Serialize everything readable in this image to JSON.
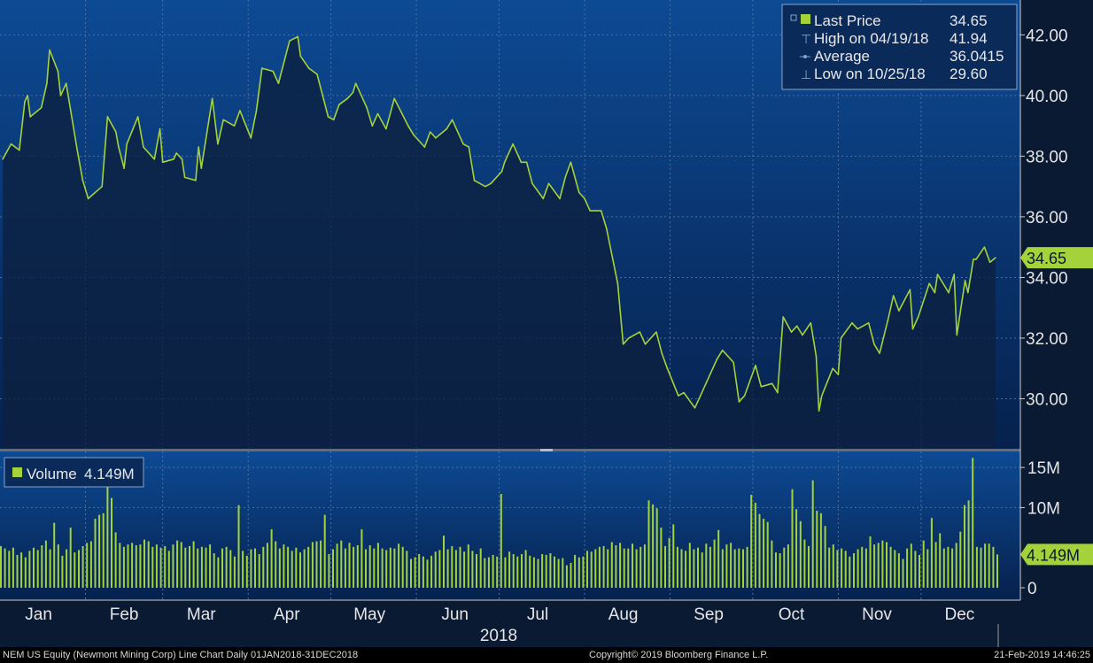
{
  "chart_data": {
    "type": "line",
    "price_panel": {
      "y_ticks": [
        "42.00",
        "40.00",
        "38.00",
        "36.00",
        "34.00",
        "32.00",
        "30.00"
      ],
      "y_tick_values": [
        42,
        40,
        38,
        36,
        34,
        32,
        30
      ],
      "ylim": [
        28.35,
        43.15
      ],
      "last_value_tag": "34.65",
      "series": [
        {
          "name": "Last Price",
          "points": [
            [
              "2018-01-02",
              37.9
            ],
            [
              "2018-01-05",
              38.4
            ],
            [
              "2018-01-08",
              38.2
            ],
            [
              "2018-01-10",
              39.8
            ],
            [
              "2018-01-11",
              40.0
            ],
            [
              "2018-01-12",
              39.3
            ],
            [
              "2018-01-16",
              39.6
            ],
            [
              "2018-01-18",
              40.4
            ],
            [
              "2018-01-19",
              41.5
            ],
            [
              "2018-01-22",
              40.8
            ],
            [
              "2018-01-23",
              40.0
            ],
            [
              "2018-01-25",
              40.4
            ],
            [
              "2018-01-29",
              38.2
            ],
            [
              "2018-01-31",
              37.2
            ],
            [
              "2018-02-02",
              36.6
            ],
            [
              "2018-02-07",
              37.0
            ],
            [
              "2018-02-09",
              39.3
            ],
            [
              "2018-02-12",
              38.8
            ],
            [
              "2018-02-13",
              38.3
            ],
            [
              "2018-02-15",
              37.6
            ],
            [
              "2018-02-16",
              38.4
            ],
            [
              "2018-02-20",
              39.3
            ],
            [
              "2018-02-22",
              38.3
            ],
            [
              "2018-02-26",
              37.9
            ],
            [
              "2018-02-28",
              38.9
            ],
            [
              "2018-03-01",
              37.8
            ],
            [
              "2018-03-05",
              37.9
            ],
            [
              "2018-03-06",
              38.1
            ],
            [
              "2018-03-08",
              37.9
            ],
            [
              "2018-03-09",
              37.3
            ],
            [
              "2018-03-13",
              37.2
            ],
            [
              "2018-03-14",
              38.3
            ],
            [
              "2018-03-15",
              37.6
            ],
            [
              "2018-03-19",
              39.9
            ],
            [
              "2018-03-21",
              38.4
            ],
            [
              "2018-03-23",
              39.2
            ],
            [
              "2018-03-27",
              39.0
            ],
            [
              "2018-03-29",
              39.5
            ],
            [
              "2018-04-02",
              38.6
            ],
            [
              "2018-04-04",
              39.5
            ],
            [
              "2018-04-06",
              40.9
            ],
            [
              "2018-04-10",
              40.8
            ],
            [
              "2018-04-12",
              40.4
            ],
            [
              "2018-04-16",
              41.8
            ],
            [
              "2018-04-19",
              41.94
            ],
            [
              "2018-04-20",
              41.3
            ],
            [
              "2018-04-23",
              40.9
            ],
            [
              "2018-04-26",
              40.7
            ],
            [
              "2018-04-30",
              39.3
            ],
            [
              "2018-05-02",
              39.2
            ],
            [
              "2018-05-04",
              39.7
            ],
            [
              "2018-05-07",
              39.9
            ],
            [
              "2018-05-09",
              40.1
            ],
            [
              "2018-05-10",
              40.4
            ],
            [
              "2018-05-14",
              39.6
            ],
            [
              "2018-05-16",
              39.0
            ],
            [
              "2018-05-18",
              39.4
            ],
            [
              "2018-05-21",
              38.9
            ],
            [
              "2018-05-24",
              39.9
            ],
            [
              "2018-05-29",
              39.0
            ],
            [
              "2018-05-31",
              38.7
            ],
            [
              "2018-06-04",
              38.3
            ],
            [
              "2018-06-06",
              38.8
            ],
            [
              "2018-06-08",
              38.6
            ],
            [
              "2018-06-12",
              38.9
            ],
            [
              "2018-06-14",
              39.2
            ],
            [
              "2018-06-18",
              38.4
            ],
            [
              "2018-06-20",
              38.3
            ],
            [
              "2018-06-22",
              37.2
            ],
            [
              "2018-06-26",
              37.0
            ],
            [
              "2018-06-28",
              37.1
            ],
            [
              "2018-07-02",
              37.5
            ],
            [
              "2018-07-03",
              37.8
            ],
            [
              "2018-07-06",
              38.4
            ],
            [
              "2018-07-09",
              37.8
            ],
            [
              "2018-07-11",
              37.8
            ],
            [
              "2018-07-13",
              37.1
            ],
            [
              "2018-07-17",
              36.6
            ],
            [
              "2018-07-19",
              37.1
            ],
            [
              "2018-07-23",
              36.6
            ],
            [
              "2018-07-25",
              37.3
            ],
            [
              "2018-07-27",
              37.8
            ],
            [
              "2018-07-30",
              36.8
            ],
            [
              "2018-08-01",
              36.6
            ],
            [
              "2018-08-03",
              36.2
            ],
            [
              "2018-08-07",
              36.2
            ],
            [
              "2018-08-09",
              35.6
            ],
            [
              "2018-08-13",
              33.8
            ],
            [
              "2018-08-15",
              31.8
            ],
            [
              "2018-08-17",
              32.0
            ],
            [
              "2018-08-21",
              32.2
            ],
            [
              "2018-08-23",
              31.8
            ],
            [
              "2018-08-27",
              32.2
            ],
            [
              "2018-08-29",
              31.5
            ],
            [
              "2018-08-31",
              31.0
            ],
            [
              "2018-09-04",
              30.1
            ],
            [
              "2018-09-06",
              30.2
            ],
            [
              "2018-09-10",
              29.7
            ],
            [
              "2018-09-12",
              30.1
            ],
            [
              "2018-09-14",
              30.5
            ],
            [
              "2018-09-18",
              31.3
            ],
            [
              "2018-09-20",
              31.6
            ],
            [
              "2018-09-24",
              31.2
            ],
            [
              "2018-09-26",
              29.9
            ],
            [
              "2018-09-28",
              30.1
            ],
            [
              "2018-10-02",
              31.1
            ],
            [
              "2018-10-04",
              30.4
            ],
            [
              "2018-10-08",
              30.5
            ],
            [
              "2018-10-10",
              30.2
            ],
            [
              "2018-10-12",
              32.7
            ],
            [
              "2018-10-15",
              32.2
            ],
            [
              "2018-10-17",
              32.4
            ],
            [
              "2018-10-19",
              32.1
            ],
            [
              "2018-10-22",
              32.5
            ],
            [
              "2018-10-24",
              31.4
            ],
            [
              "2018-10-25",
              29.6
            ],
            [
              "2018-10-26",
              30.1
            ],
            [
              "2018-10-30",
              31.0
            ],
            [
              "2018-11-01",
              30.8
            ],
            [
              "2018-11-02",
              32.0
            ],
            [
              "2018-11-06",
              32.5
            ],
            [
              "2018-11-08",
              32.3
            ],
            [
              "2018-11-12",
              32.5
            ],
            [
              "2018-11-14",
              31.8
            ],
            [
              "2018-11-16",
              31.5
            ],
            [
              "2018-11-19",
              32.6
            ],
            [
              "2018-11-21",
              33.4
            ],
            [
              "2018-11-23",
              32.9
            ],
            [
              "2018-11-27",
              33.6
            ],
            [
              "2018-11-28",
              32.3
            ],
            [
              "2018-11-30",
              32.7
            ],
            [
              "2018-12-04",
              33.8
            ],
            [
              "2018-12-06",
              33.5
            ],
            [
              "2018-12-07",
              34.1
            ],
            [
              "2018-12-11",
              33.5
            ],
            [
              "2018-12-13",
              34.1
            ],
            [
              "2018-12-14",
              32.1
            ],
            [
              "2018-12-17",
              33.9
            ],
            [
              "2018-12-18",
              33.5
            ],
            [
              "2018-12-20",
              34.6
            ],
            [
              "2018-12-21",
              34.6
            ],
            [
              "2018-12-24",
              35.0
            ],
            [
              "2018-12-26",
              34.5
            ],
            [
              "2018-12-28",
              34.65
            ]
          ]
        }
      ]
    },
    "volume_panel": {
      "y_ticks": [
        "15M",
        "10M",
        "0"
      ],
      "y_tick_values": [
        15,
        10,
        0
      ],
      "ymax": 17,
      "last_value_tag": "4.149M",
      "unit": "M",
      "series": [
        {
          "name": "Volume",
          "values": [
            5.2,
            4.9,
            4.6,
            5.0,
            4.1,
            4.4,
            3.8,
            4.6,
            5.0,
            4.7,
            5.3,
            5.9,
            4.8,
            8.1,
            5.4,
            4.0,
            4.8,
            7.5,
            4.4,
            4.7,
            5.2,
            5.6,
            5.8,
            8.6,
            9.1,
            9.3,
            13.1,
            11.2,
            6.9,
            5.6,
            5.1,
            5.4,
            5.6,
            5.3,
            5.4,
            6.0,
            5.8,
            5.1,
            5.4,
            5.0,
            5.2,
            4.6,
            5.4,
            5.9,
            5.7,
            5.0,
            5.2,
            5.8,
            4.9,
            5.1,
            5.0,
            5.4,
            4.3,
            3.8,
            4.9,
            5.1,
            4.7,
            3.9,
            10.3,
            4.6,
            4.0,
            4.8,
            4.9,
            4.2,
            5.1,
            5.6,
            7.3,
            5.8,
            4.9,
            5.4,
            5.1,
            4.6,
            5.0,
            4.4,
            4.8,
            5.1,
            5.7,
            5.8,
            5.9,
            9.1,
            4.2,
            4.8,
            5.5,
            5.9,
            4.9,
            5.6,
            5.1,
            5.3,
            7.3,
            4.8,
            5.3,
            4.9,
            5.6,
            4.9,
            4.7,
            5.0,
            4.9,
            5.5,
            5.1,
            4.6,
            3.6,
            3.8,
            4.2,
            3.9,
            3.5,
            4.0,
            4.5,
            4.7,
            6.5,
            4.8,
            5.2,
            4.7,
            5.1,
            4.5,
            5.4,
            4.6,
            4.2,
            4.9,
            3.7,
            3.8,
            4.1,
            3.9,
            11.7,
            3.8,
            4.5,
            4.2,
            3.9,
            4.2,
            4.7,
            4.0,
            3.8,
            3.6,
            4.2,
            4.1,
            4.3,
            3.9,
            3.6,
            3.7,
            2.8,
            3.1,
            4.1,
            3.8,
            3.9,
            4.6,
            4.5,
            4.8,
            5.1,
            5.2,
            4.8,
            5.7,
            5.3,
            5.6,
            4.9,
            4.9,
            5.5,
            4.8,
            5.1,
            5.4,
            10.9,
            10.4,
            9.9,
            7.5,
            5.2,
            6.2,
            7.9,
            5.1,
            4.8,
            4.6,
            5.6,
            4.8,
            5.0,
            4.4,
            5.5,
            5.1,
            6.0,
            7.2,
            4.8,
            5.4,
            5.6,
            4.8,
            4.9,
            4.8,
            5.1,
            11.6,
            10.6,
            9.2,
            8.6,
            8.2,
            5.9,
            4.4,
            4.3,
            5.0,
            5.4,
            12.3,
            9.8,
            8.3,
            6.0,
            5.2,
            13.4,
            9.6,
            9.3,
            7.7,
            5.0,
            5.4,
            4.7,
            4.9,
            4.6,
            3.9,
            4.3,
            4.8,
            5.1,
            4.9,
            6.4,
            5.4,
            5.6,
            5.9,
            5.7,
            5.1,
            4.7,
            4.3,
            3.6,
            4.9,
            5.5,
            4.6,
            4.1,
            5.9,
            4.8,
            8.7,
            5.7,
            6.8,
            4.9,
            5.1,
            4.9,
            5.6,
            7.0,
            10.3,
            10.9,
            16.2,
            5.1,
            5.0,
            5.5,
            5.5,
            5.1,
            4.149
          ]
        }
      ]
    },
    "x_months": [
      "Jan",
      "Feb",
      "Mar",
      "Apr",
      "May",
      "Jun",
      "Jul",
      "Aug",
      "Sep",
      "Oct",
      "Nov",
      "Dec"
    ],
    "x_year": "2018",
    "legend": {
      "price": [
        {
          "label": "Last Price",
          "value": "34.65"
        },
        {
          "label": "High on 04/19/18",
          "value": "41.94"
        },
        {
          "label": "Average",
          "value": "36.0415"
        },
        {
          "label": "Low on 10/25/18",
          "value": "29.60"
        }
      ],
      "volume": {
        "label": "Volume",
        "value": "4.149M"
      }
    },
    "footer": {
      "left": "NEM US Equity (Newmont Mining Corp) Line Chart  Daily 01JAN2018-31DEC2018",
      "center": "Copyright© 2019 Bloomberg Finance L.P.",
      "right": "21-Feb-2019 14:46:25"
    },
    "colors": {
      "line": "#a4d23a",
      "panel_top": "#0d4a94",
      "panel_bottom": "#06214d",
      "area_fill": "#0c2140",
      "tag": "#a4d23a"
    }
  }
}
